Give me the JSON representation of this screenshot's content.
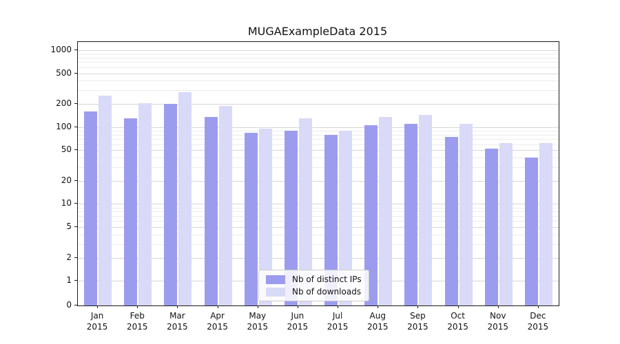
{
  "chart_data": {
    "type": "bar",
    "title": "MUGAExampleData 2015",
    "year_label": "2015",
    "categories": [
      "Jan",
      "Feb",
      "Mar",
      "Apr",
      "May",
      "Jun",
      "Jul",
      "Aug",
      "Sep",
      "Oct",
      "Nov",
      "Dec"
    ],
    "series": [
      {
        "name": "Nb of distinct IPs",
        "color": "#9c9cee",
        "values": [
          160,
          130,
          200,
          135,
          85,
          90,
          80,
          105,
          110,
          75,
          52,
          40
        ]
      },
      {
        "name": "Nb of downloads",
        "color": "#d9d9f8",
        "values": [
          255,
          205,
          285,
          190,
          95,
          130,
          90,
          135,
          145,
          110,
          62,
          62
        ]
      }
    ],
    "y_axis": {
      "scale": "log-with-zero",
      "ticks": [
        0,
        1,
        2,
        5,
        10,
        20,
        50,
        100,
        200,
        500,
        1000
      ],
      "minor_ticks": [
        3,
        4,
        6,
        7,
        8,
        9,
        30,
        40,
        60,
        70,
        80,
        90,
        300,
        400,
        600,
        700,
        800,
        900
      ],
      "range_max": 1000
    },
    "grid": true,
    "legend_position": "bottom-center"
  }
}
